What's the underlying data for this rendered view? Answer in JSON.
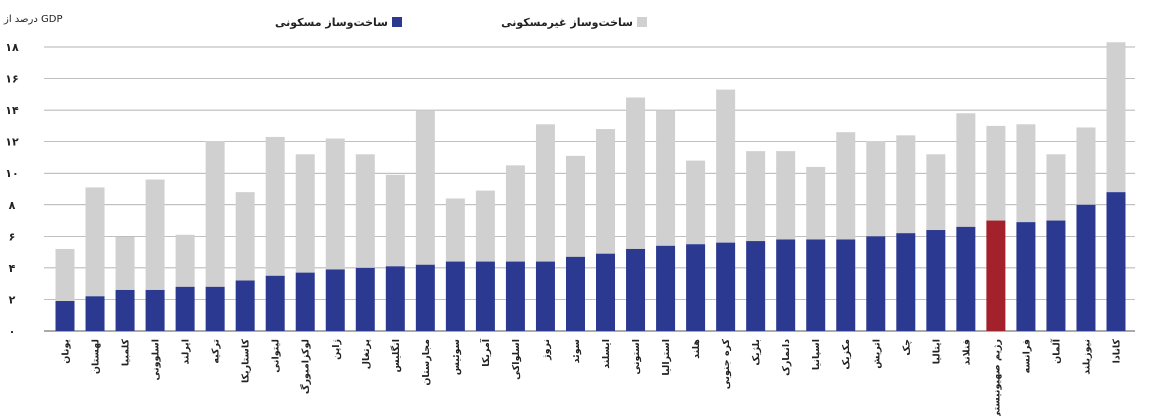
{
  "chart_data": {
    "type": "bar",
    "stacked": true,
    "ylabel": "درصد از GDP",
    "ylim": [
      0,
      18
    ],
    "yticks": [
      "۰",
      "۲",
      "۴",
      "۶",
      "۸",
      "۱۰",
      "۱۲",
      "۱۴",
      "۱۶",
      "۱۸"
    ],
    "grid": true,
    "legend_position": "top",
    "categories": [
      "یونان",
      "لهستان",
      "کلمبیا",
      "اسلوونی",
      "ایرلند",
      "ترکیه",
      "کاستاریکا",
      "لیتوانی",
      "لوکزامبورگ",
      "ژاپن",
      "پرتغال",
      "انگلیس",
      "مجارستان",
      "سوئیس",
      "آمریکا",
      "اسلواکی",
      "نروژ",
      "سوئد",
      "ایسلند",
      "استونی",
      "استرالیا",
      "هلند",
      "کره جنوبی",
      "بلژیک",
      "دانمارک",
      "اسپانیا",
      "مکزیک",
      "اتریش",
      "چک",
      "ایتالیا",
      "فنلاند",
      "رژیم صهیونیستی",
      "فرانسه",
      "آلمان",
      "نیوزیلند",
      "کانادا"
    ],
    "series": [
      {
        "name": "ساخت‌وساز مسکونی",
        "color": "#2b3990",
        "values": [
          1.9,
          2.2,
          2.6,
          2.6,
          2.8,
          2.8,
          3.2,
          3.5,
          3.7,
          3.9,
          4.0,
          4.1,
          4.2,
          4.4,
          4.4,
          4.4,
          4.4,
          4.7,
          4.9,
          5.2,
          5.4,
          5.5,
          5.6,
          5.7,
          5.8,
          5.8,
          5.8,
          6.0,
          6.2,
          6.4,
          6.6,
          7.0,
          6.9,
          7.0,
          8.0,
          8.8
        ]
      },
      {
        "name": "ساخت‌وساز غیرمسکونی",
        "color": "#d0d0d0",
        "values": [
          3.3,
          6.9,
          3.4,
          7.0,
          3.3,
          9.2,
          5.6,
          8.8,
          7.5,
          8.3,
          7.2,
          5.8,
          9.8,
          4.0,
          4.5,
          6.1,
          8.7,
          6.4,
          7.9,
          9.6,
          8.6,
          5.3,
          9.7,
          5.7,
          5.6,
          4.6,
          6.8,
          6.0,
          6.2,
          4.8,
          7.2,
          6.0,
          6.2,
          4.2,
          4.9,
          9.5
        ]
      }
    ],
    "highlight": {
      "category": "رژیم صهیونیستی",
      "color": "#a3212b"
    }
  }
}
